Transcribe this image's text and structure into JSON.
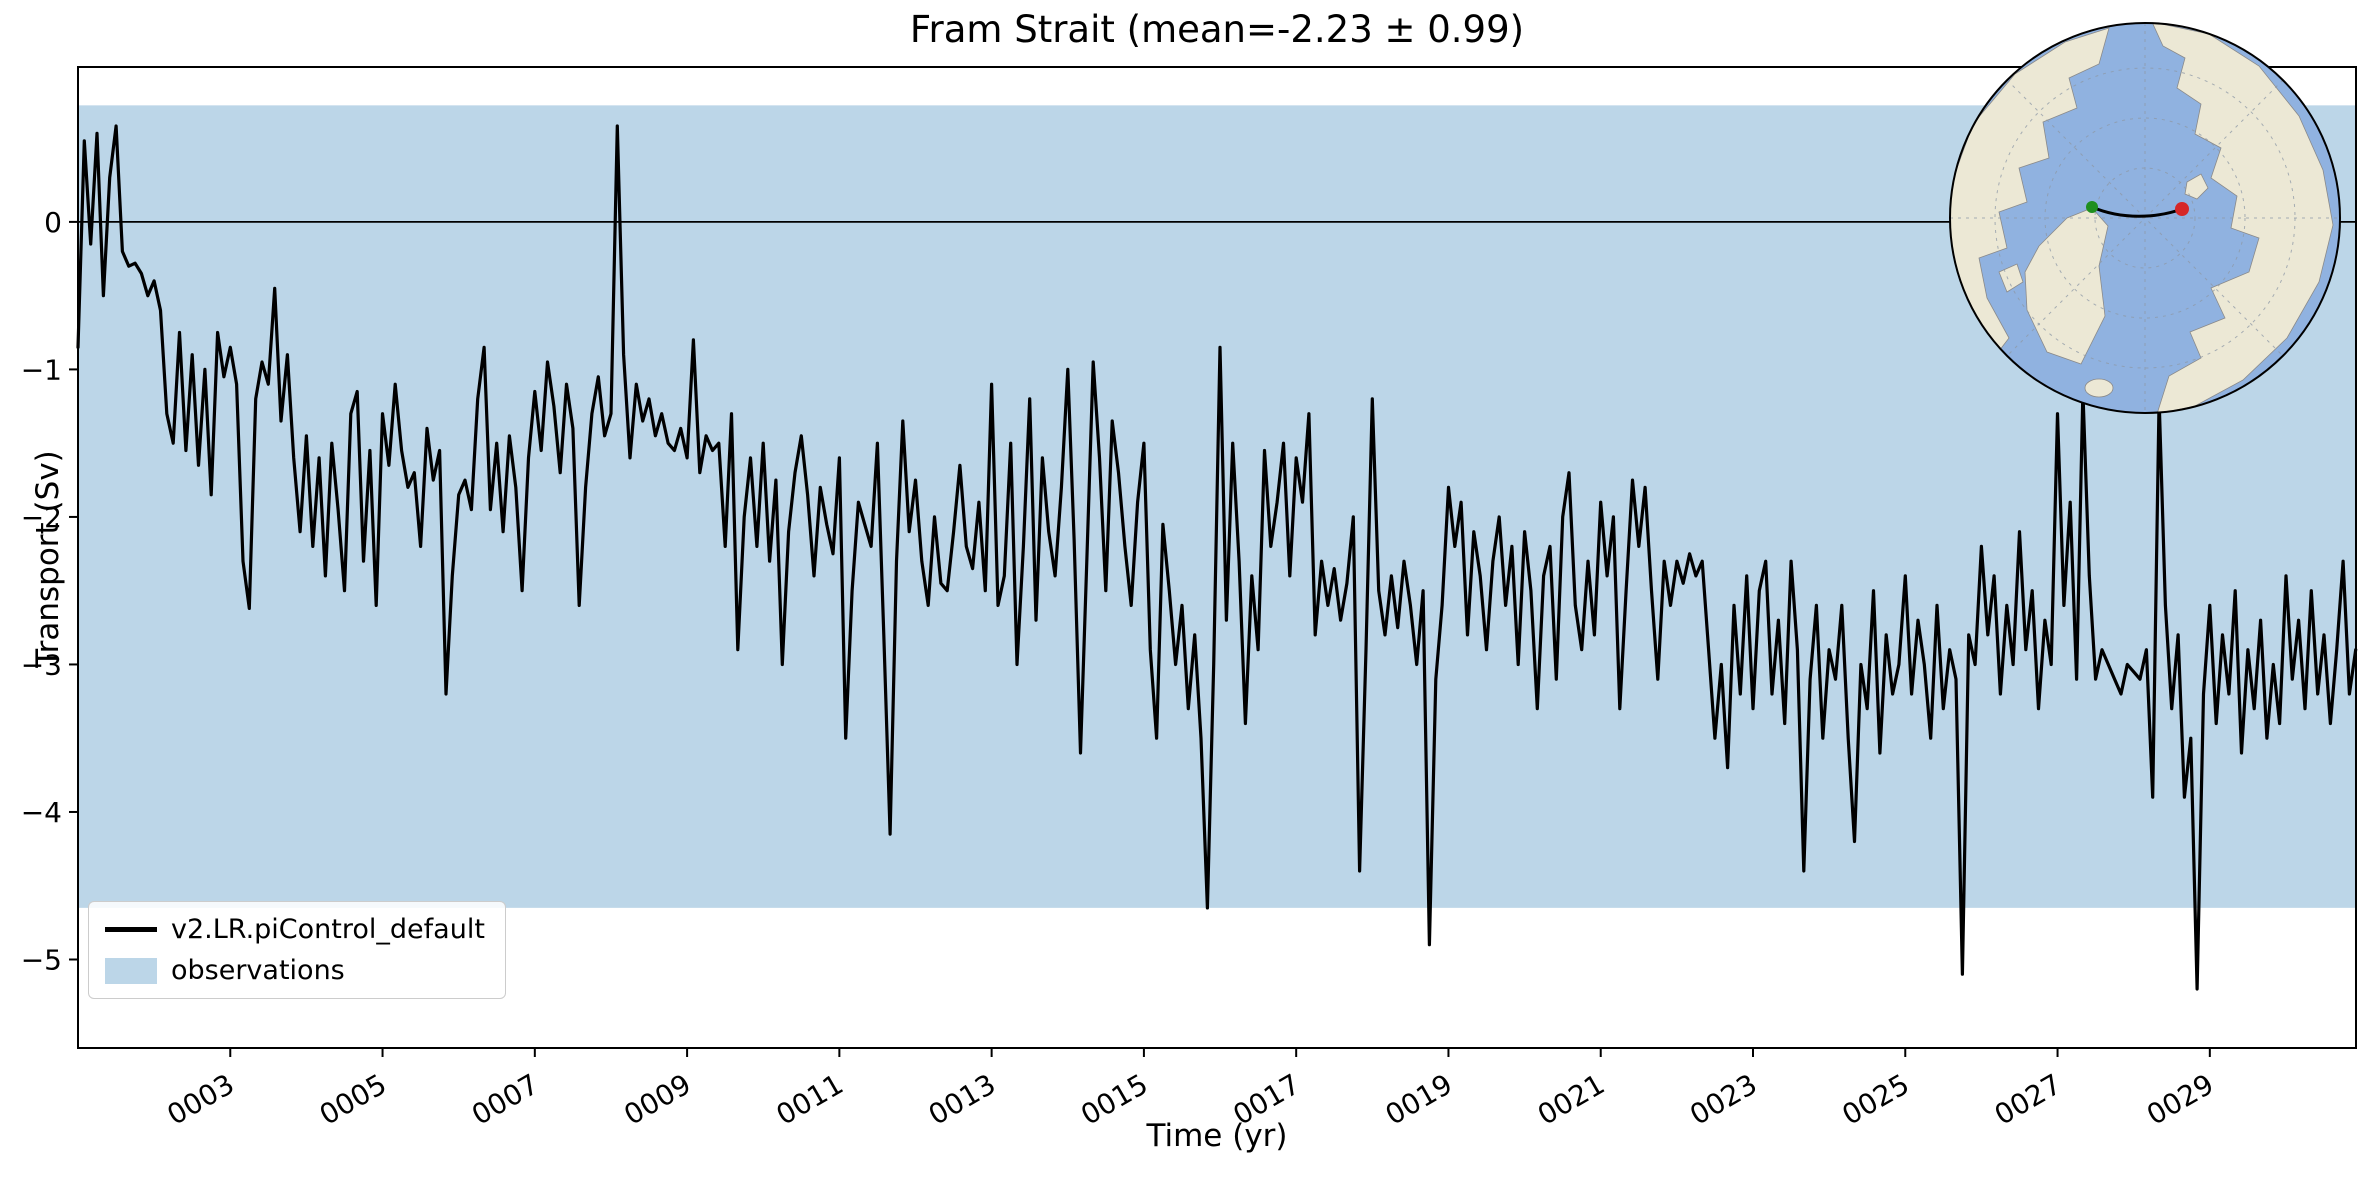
{
  "figure": {
    "title": "Fram Strait (mean=-2.23 ± 0.99)"
  },
  "colors": {
    "ocean": "#90b2e0",
    "land": "#ece8d5",
    "coastline": "#8a8a8a",
    "band": "#bcd6e8",
    "series": "#000000"
  },
  "inset_map": {
    "description": "north-polar-stereographic-map-with-fram-strait-transect",
    "start_marker_color": "#1f8f1f",
    "end_marker_color": "#d62728"
  },
  "chart_data": {
    "type": "line",
    "title": "Fram Strait (mean=-2.23 ± 0.99)",
    "xlabel": "Time (yr)",
    "ylabel": "Transport (Sv)",
    "mean": -2.23,
    "std": 0.99,
    "xlim": [
      1.0,
      30.92
    ],
    "ylim": [
      -5.6,
      1.05
    ],
    "xticks": [
      3,
      5,
      7,
      9,
      11,
      13,
      15,
      17,
      19,
      21,
      23,
      25,
      27,
      29
    ],
    "xtick_labels": [
      "0003",
      "0005",
      "0007",
      "0009",
      "0011",
      "0013",
      "0015",
      "0017",
      "0019",
      "0021",
      "0023",
      "0025",
      "0027",
      "0029"
    ],
    "yticks": [
      0,
      -1,
      -2,
      -3,
      -4,
      -5
    ],
    "ytick_labels": [
      "0",
      "−1",
      "−2",
      "−3",
      "−4",
      "−5"
    ],
    "grid": false,
    "legend_position": "lower left",
    "zero_line": 0,
    "x_start": 1.0,
    "x_step": 0.0833333,
    "x_unit": "yr",
    "series": [
      {
        "name": "v2.LR.piControl_default",
        "color": "#000000",
        "values": [
          -0.85,
          0.55,
          -0.15,
          0.6,
          -0.5,
          0.3,
          0.65,
          -0.2,
          -0.3,
          -0.28,
          -0.35,
          -0.5,
          -0.4,
          -0.6,
          -1.3,
          -1.5,
          -0.75,
          -1.55,
          -0.9,
          -1.65,
          -1.0,
          -1.85,
          -0.75,
          -1.05,
          -0.85,
          -1.1,
          -2.3,
          -2.62,
          -1.2,
          -0.95,
          -1.1,
          -0.45,
          -1.35,
          -0.9,
          -1.6,
          -2.1,
          -1.45,
          -2.2,
          -1.6,
          -2.4,
          -1.5,
          -1.95,
          -2.5,
          -1.3,
          -1.15,
          -2.3,
          -1.55,
          -2.6,
          -1.3,
          -1.65,
          -1.1,
          -1.55,
          -1.8,
          -1.7,
          -2.2,
          -1.4,
          -1.75,
          -1.55,
          -3.2,
          -2.4,
          -1.85,
          -1.75,
          -1.95,
          -1.2,
          -0.85,
          -1.95,
          -1.5,
          -2.1,
          -1.45,
          -1.8,
          -2.5,
          -1.6,
          -1.15,
          -1.55,
          -0.95,
          -1.25,
          -1.7,
          -1.1,
          -1.4,
          -2.6,
          -1.8,
          -1.3,
          -1.05,
          -1.45,
          -1.3,
          0.65,
          -0.9,
          -1.6,
          -1.1,
          -1.35,
          -1.2,
          -1.45,
          -1.3,
          -1.5,
          -1.55,
          -1.4,
          -1.6,
          -0.8,
          -1.7,
          -1.45,
          -1.55,
          -1.5,
          -2.2,
          -1.3,
          -2.9,
          -2.0,
          -1.6,
          -2.2,
          -1.5,
          -2.3,
          -1.75,
          -3.0,
          -2.1,
          -1.7,
          -1.45,
          -1.85,
          -2.4,
          -1.8,
          -2.05,
          -2.25,
          -1.6,
          -3.5,
          -2.5,
          -1.9,
          -2.05,
          -2.2,
          -1.5,
          -2.8,
          -4.15,
          -2.3,
          -1.35,
          -2.1,
          -1.75,
          -2.3,
          -2.6,
          -2.0,
          -2.45,
          -2.5,
          -2.1,
          -1.65,
          -2.2,
          -2.35,
          -1.9,
          -2.5,
          -1.1,
          -2.6,
          -2.4,
          -1.5,
          -3.0,
          -2.2,
          -1.2,
          -2.7,
          -1.6,
          -2.1,
          -2.4,
          -1.8,
          -1.0,
          -2.15,
          -3.6,
          -2.3,
          -0.95,
          -1.6,
          -2.5,
          -1.35,
          -1.7,
          -2.2,
          -2.6,
          -1.9,
          -1.5,
          -2.9,
          -3.5,
          -2.05,
          -2.5,
          -3.0,
          -2.6,
          -3.3,
          -2.8,
          -3.5,
          -4.65,
          -3.0,
          -0.85,
          -2.7,
          -1.5,
          -2.3,
          -3.4,
          -2.4,
          -2.9,
          -1.55,
          -2.2,
          -1.9,
          -1.5,
          -2.4,
          -1.6,
          -1.9,
          -1.3,
          -2.8,
          -2.3,
          -2.6,
          -2.35,
          -2.7,
          -2.45,
          -2.0,
          -4.4,
          -2.9,
          -1.2,
          -2.5,
          -2.8,
          -2.4,
          -2.75,
          -2.3,
          -2.6,
          -3.0,
          -2.5,
          -4.9,
          -3.1,
          -2.6,
          -1.8,
          -2.2,
          -1.9,
          -2.8,
          -2.1,
          -2.4,
          -2.9,
          -2.3,
          -2.0,
          -2.6,
          -2.2,
          -3.0,
          -2.1,
          -2.5,
          -3.3,
          -2.4,
          -2.2,
          -3.1,
          -2.0,
          -1.7,
          -2.6,
          -2.9,
          -2.3,
          -2.8,
          -1.9,
          -2.4,
          -2.0,
          -3.3,
          -2.5,
          -1.75,
          -2.2,
          -1.8,
          -2.5,
          -3.1,
          -2.3,
          -2.6,
          -2.3,
          -2.45,
          -2.25,
          -2.4,
          -2.3,
          -2.9,
          -3.5,
          -3.0,
          -3.7,
          -2.6,
          -3.2,
          -2.4,
          -3.3,
          -2.5,
          -2.3,
          -3.2,
          -2.7,
          -3.4,
          -2.3,
          -2.9,
          -4.4,
          -3.1,
          -2.6,
          -3.5,
          -2.9,
          -3.1,
          -2.6,
          -3.5,
          -4.2,
          -3.0,
          -3.3,
          -2.5,
          -3.6,
          -2.8,
          -3.2,
          -3.0,
          -2.4,
          -3.2,
          -2.7,
          -3.0,
          -3.5,
          -2.6,
          -3.3,
          -2.9,
          -3.1,
          -5.1,
          -2.8,
          -3.0,
          -2.2,
          -2.8,
          -2.4,
          -3.2,
          -2.6,
          -3.0,
          -2.1,
          -2.9,
          -2.5,
          -3.3,
          -2.7,
          -3.0,
          -1.3,
          -2.6,
          -1.9,
          -3.1,
          -1.15,
          -2.4,
          -3.1,
          -2.9,
          -3.0,
          -3.1,
          -3.2,
          -3.0,
          -3.05,
          -3.1,
          -2.9,
          -3.9,
          -1.2,
          -2.6,
          -3.3,
          -2.8,
          -3.9,
          -3.5,
          -5.2,
          -3.2,
          -2.6,
          -3.4,
          -2.8,
          -3.2,
          -2.5,
          -3.6,
          -2.9,
          -3.3,
          -2.7,
          -3.5,
          -3.0,
          -3.4,
          -2.4,
          -3.1,
          -2.7,
          -3.3,
          -2.5,
          -3.2,
          -2.8,
          -3.4,
          -2.9,
          -2.3,
          -3.2,
          -2.9
        ]
      }
    ],
    "bands": [
      {
        "name": "observations",
        "color": "#bcd6e8",
        "ymin": -4.65,
        "ymax": 0.79
      }
    ]
  }
}
